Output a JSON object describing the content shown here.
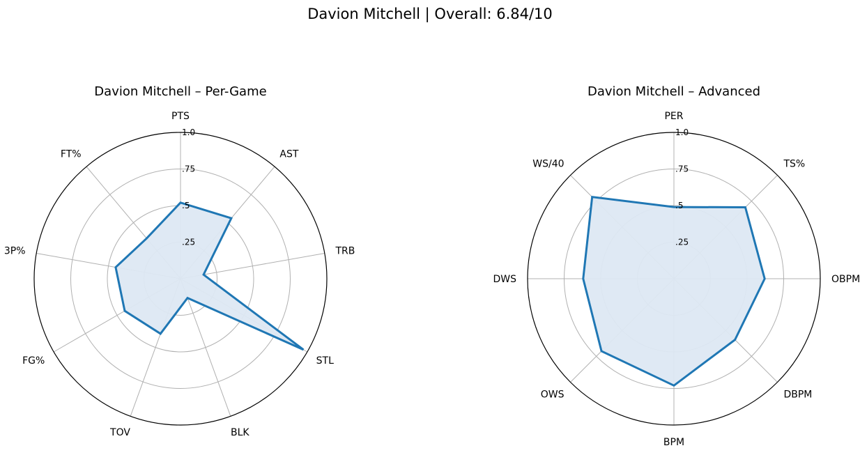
{
  "suptitle": "Davion Mitchell | Overall: 6.84/10",
  "chart_data": [
    {
      "type": "radar",
      "title": "Davion Mitchell – Per-Game",
      "categories": [
        "PTS",
        "AST",
        "TRB",
        "STL",
        "BLK",
        "TOV",
        "FG%",
        "3P%",
        "FT%"
      ],
      "values": [
        0.52,
        0.54,
        0.16,
        0.97,
        0.14,
        0.4,
        0.44,
        0.45,
        0.36
      ],
      "rlim": [
        0,
        1.0
      ],
      "rticks": [
        0.25,
        0.5,
        0.75,
        1.0
      ],
      "rtick_labels": [
        ".25",
        ".5",
        ".75",
        "1.0"
      ],
      "grid": true,
      "colors": {
        "line": "#1f77b4",
        "fill": "#dde8f3",
        "grid": "#b0b0b0",
        "frame": "#000000"
      }
    },
    {
      "type": "radar",
      "title": "Davion Mitchell – Advanced",
      "categories": [
        "PER",
        "TS%",
        "OBPM",
        "DBPM",
        "BPM",
        "OWS",
        "DWS",
        "WS/40"
      ],
      "values": [
        0.49,
        0.69,
        0.62,
        0.59,
        0.73,
        0.7,
        0.62,
        0.79
      ],
      "rlim": [
        0,
        1.0
      ],
      "rticks": [
        0.25,
        0.5,
        0.75,
        1.0
      ],
      "rtick_labels": [
        ".25",
        ".5",
        ".75",
        "1.0"
      ],
      "grid": true,
      "colors": {
        "line": "#1f77b4",
        "fill": "#dde8f3",
        "grid": "#b0b0b0",
        "frame": "#000000"
      }
    }
  ]
}
